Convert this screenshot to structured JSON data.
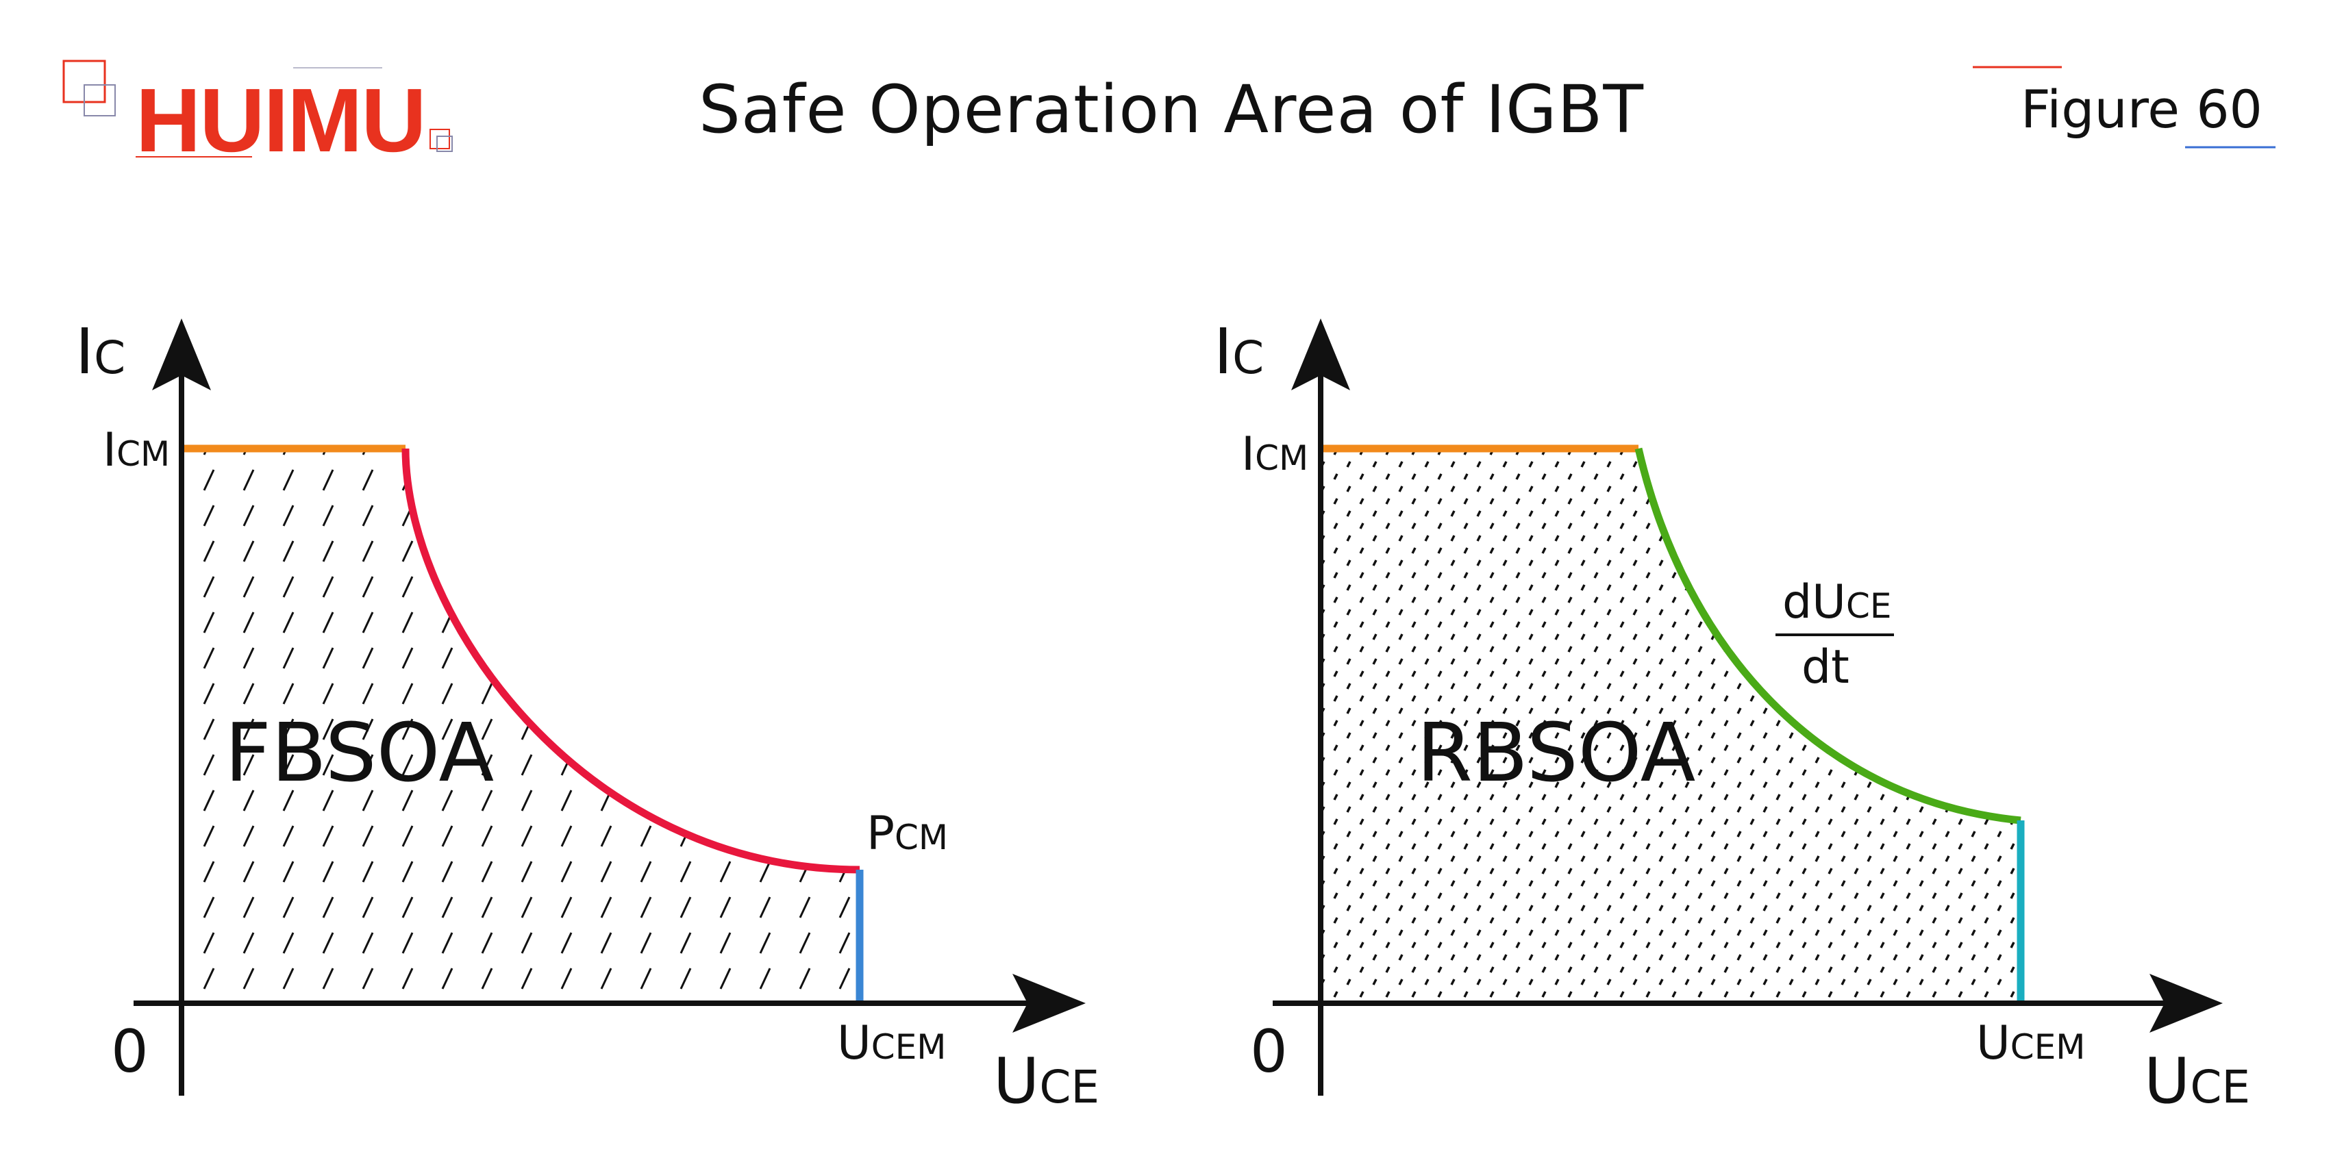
{
  "header": {
    "brand": "HUIMU",
    "title": "Safe Operation Area of IGBT",
    "figure_label": "Figure 60"
  },
  "colors": {
    "brand": "#e8321f",
    "current_limit": "#f28a1b",
    "power_limit": "#e8173d",
    "voltage_limit_left": "#3a86d4",
    "dv_dt_limit": "#4aaa17",
    "voltage_limit_right": "#1aaec0"
  },
  "diagrams": [
    {
      "region_label": "FBSOA",
      "fill_pattern": "diagonal-hatch",
      "y_axis": {
        "main": "I",
        "sub": "C"
      },
      "x_axis": {
        "main": "U",
        "sub": "CE"
      },
      "origin": "0",
      "current_limit": {
        "main": "I",
        "sub": "CM"
      },
      "voltage_limit": {
        "main": "U",
        "sub": "CEM"
      },
      "curve_label": {
        "main": "P",
        "sub": "CM"
      }
    },
    {
      "region_label": "RBSOA",
      "fill_pattern": "dot-dash",
      "y_axis": {
        "main": "I",
        "sub": "C"
      },
      "x_axis": {
        "main": "U",
        "sub": "CE"
      },
      "origin": "0",
      "current_limit": {
        "main": "I",
        "sub": "CM"
      },
      "voltage_limit": {
        "main": "U",
        "sub": "CEM"
      },
      "curve_label": {
        "numerator_main": "dU",
        "numerator_sub": "CE",
        "denominator": "dt"
      }
    }
  ]
}
